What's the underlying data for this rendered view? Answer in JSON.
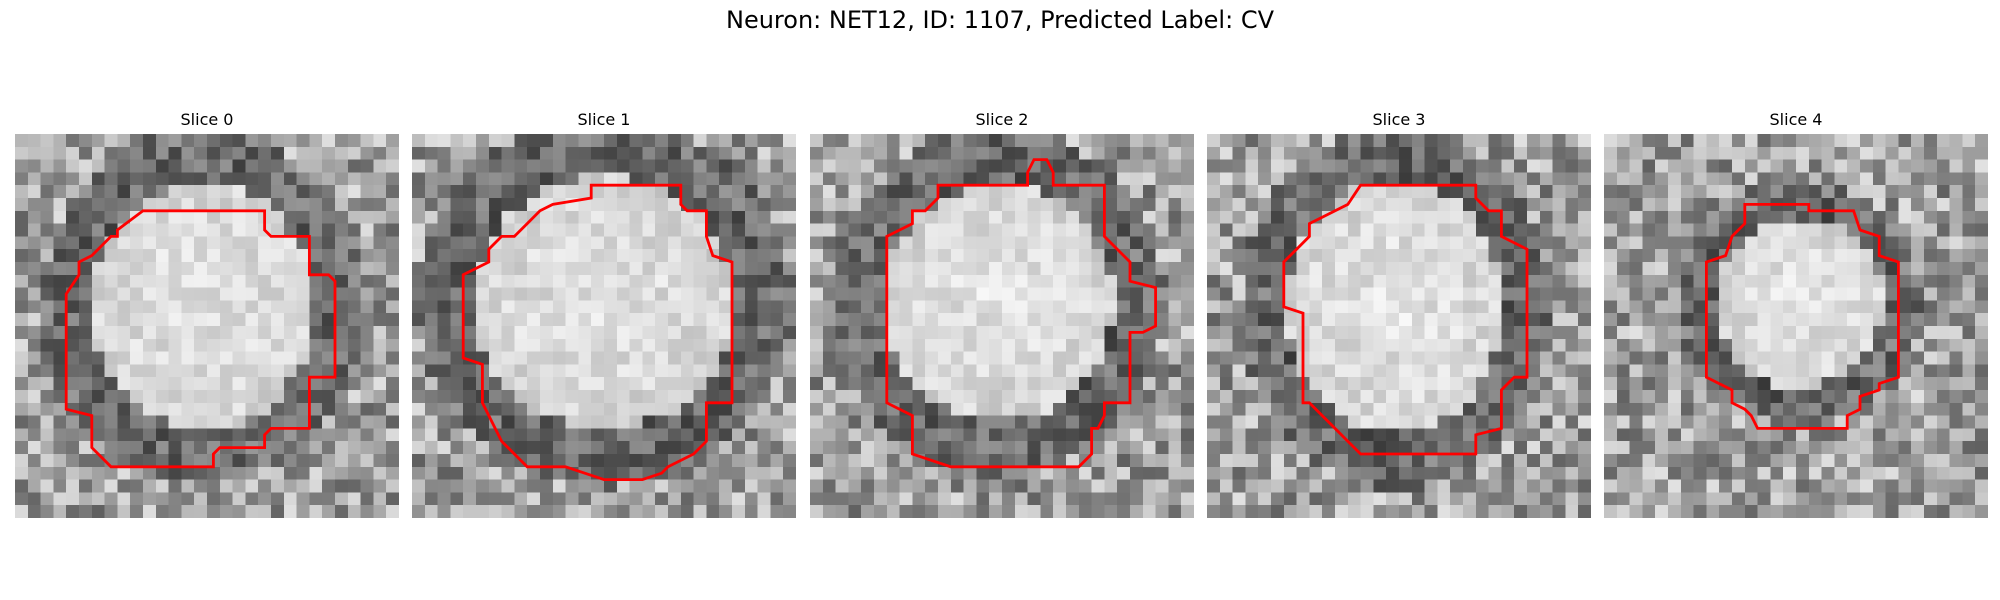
{
  "figure": {
    "title": "Neuron: NET12, ID: 1107, Predicted Label: CV"
  },
  "panels": [
    {
      "label": "Slice 0",
      "blob": [
        0.49,
        0.45,
        0.29,
        0.32
      ],
      "ring": 0.36
    },
    {
      "label": "Slice 1",
      "blob": [
        0.5,
        0.44,
        0.34,
        0.33
      ],
      "ring": 0.3
    },
    {
      "label": "Slice 2",
      "blob": [
        0.49,
        0.44,
        0.3,
        0.31
      ],
      "ring": 0.32
    },
    {
      "label": "Slice 3",
      "blob": [
        0.49,
        0.45,
        0.28,
        0.33
      ],
      "ring": 0.38
    },
    {
      "label": "Slice 4",
      "blob": [
        0.51,
        0.44,
        0.22,
        0.22
      ],
      "ring": 0.42
    }
  ],
  "colors": {
    "contour": "#ff0000"
  }
}
